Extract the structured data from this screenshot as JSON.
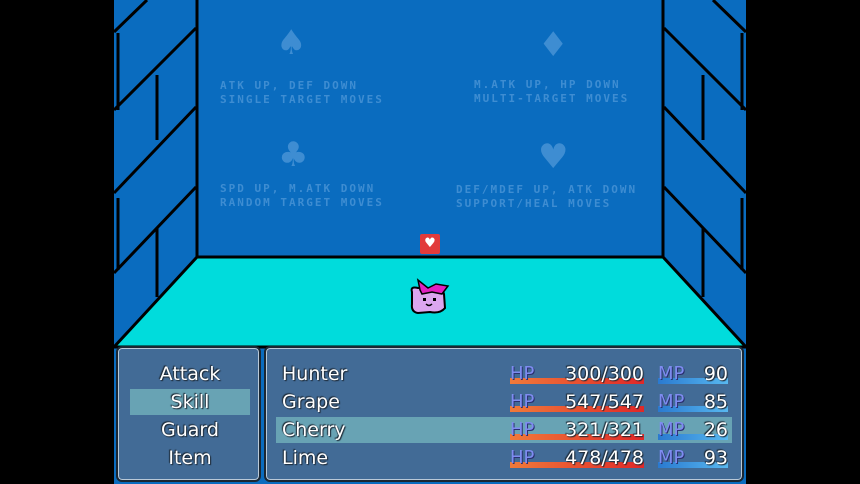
{
  "scene": {
    "hints": [
      {
        "suit": "♠",
        "line1": "ATK UP, DEF DOWN",
        "line2": "SINGLE TARGET MOVES"
      },
      {
        "suit": "♦",
        "line1": "M.ATK UP, HP DOWN",
        "line2": "MULTI-TARGET MOVES"
      },
      {
        "suit": "♣",
        "line1": "SPD UP, M.ATK DOWN",
        "line2": "RANDOM TARGET MOVES"
      },
      {
        "suit": "♥",
        "line1": "DEF/MDEF UP, ATK DOWN",
        "line2": "SUPPORT/HEAL MOVES"
      }
    ],
    "enemy_state_icon": "heart-icon",
    "colors": {
      "wall": "#0a6cbf",
      "floor": "#00dede",
      "hp": "#f0502a",
      "mp": "#3a9ae0"
    }
  },
  "commands": {
    "items": [
      "Attack",
      "Skill",
      "Guard",
      "Item"
    ],
    "selected": "Skill"
  },
  "party": {
    "hp_label": "HP",
    "mp_label": "MP",
    "selected": "Cherry",
    "members": [
      {
        "name": "Hunter",
        "hp": "300/300",
        "mp": "90",
        "hp_fill": 1,
        "mp_fill": 1
      },
      {
        "name": "Grape",
        "hp": "547/547",
        "mp": "85",
        "hp_fill": 1,
        "mp_fill": 1
      },
      {
        "name": "Cherry",
        "hp": "321/321",
        "mp": "26",
        "hp_fill": 1,
        "mp_fill": 1
      },
      {
        "name": "Lime",
        "hp": "478/478",
        "mp": "93",
        "hp_fill": 1,
        "mp_fill": 1
      }
    ]
  }
}
